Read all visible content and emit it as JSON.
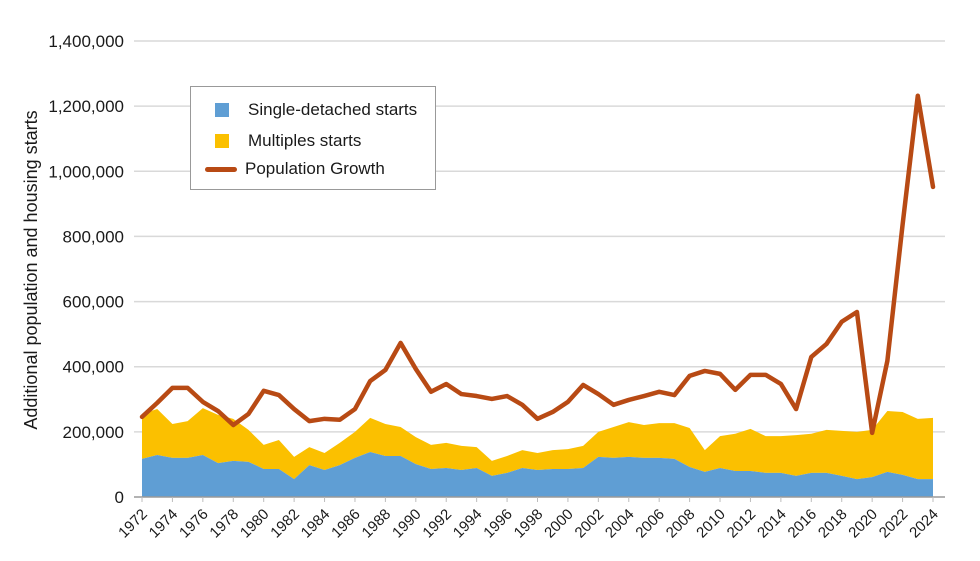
{
  "chart_data": {
    "type": "area",
    "title": "",
    "xlabel": "",
    "ylabel": "Additional population and housing starts",
    "ylim": [
      0,
      1400000
    ],
    "yticks": [
      0,
      200000,
      400000,
      600000,
      800000,
      1000000,
      1200000,
      1400000
    ],
    "ytick_labels": [
      "0",
      "200,000",
      "400,000",
      "600,000",
      "800,000",
      "1,000,000",
      "1,200,000",
      "1,400,000"
    ],
    "xtick_labels": [
      "1972",
      "1974",
      "1976",
      "1978",
      "1980",
      "1982",
      "1984",
      "1986",
      "1988",
      "1990",
      "1992",
      "1994",
      "1996",
      "1998",
      "2000",
      "2002",
      "2004",
      "2006",
      "2008",
      "2010",
      "2012",
      "2014",
      "2016",
      "2018",
      "2020",
      "2022",
      "2024"
    ],
    "grid": true,
    "legend_position": "top-left",
    "x": [
      1972,
      1973,
      1974,
      1975,
      1976,
      1977,
      1978,
      1979,
      1980,
      1981,
      1982,
      1983,
      1984,
      1985,
      1986,
      1987,
      1988,
      1989,
      1990,
      1991,
      1992,
      1993,
      1994,
      1995,
      1996,
      1997,
      1998,
      1999,
      2000,
      2001,
      2002,
      2003,
      2004,
      2005,
      2006,
      2007,
      2008,
      2009,
      2010,
      2011,
      2012,
      2013,
      2014,
      2015,
      2016,
      2017,
      2018,
      2019,
      2020,
      2021,
      2022,
      2023,
      2024
    ],
    "series": [
      {
        "name": "Single-detached starts",
        "kind": "stacked-area",
        "color": "#5f9ed4",
        "values": [
          117000,
          129000,
          120000,
          120000,
          129000,
          104000,
          111000,
          108000,
          86000,
          86000,
          55000,
          98000,
          83000,
          98000,
          120000,
          138000,
          126000,
          126000,
          101000,
          86000,
          89000,
          83000,
          89000,
          65000,
          74000,
          89000,
          83000,
          86000,
          86000,
          89000,
          123000,
          120000,
          123000,
          120000,
          120000,
          117000,
          92000,
          77000,
          89000,
          80000,
          80000,
          74000,
          74000,
          65000,
          74000,
          74000,
          65000,
          55000,
          61000,
          77000,
          68000,
          55000,
          55000
        ]
      },
      {
        "name": "Multiples starts",
        "kind": "stacked-area",
        "color": "#fbc000",
        "values": [
          138000,
          141000,
          104000,
          113000,
          144000,
          148000,
          129000,
          98000,
          74000,
          89000,
          68000,
          55000,
          52000,
          68000,
          80000,
          105000,
          98000,
          89000,
          83000,
          74000,
          77000,
          74000,
          64000,
          46000,
          52000,
          55000,
          52000,
          58000,
          61000,
          68000,
          77000,
          95000,
          107000,
          101000,
          107000,
          110000,
          120000,
          67000,
          98000,
          114000,
          129000,
          113000,
          113000,
          125000,
          120000,
          132000,
          138000,
          145000,
          145000,
          187000,
          193000,
          185000,
          188000
        ]
      },
      {
        "name": "Population Growth",
        "kind": "line",
        "color": "#b84a14",
        "values": [
          246000,
          289000,
          335000,
          335000,
          292000,
          264000,
          221000,
          255000,
          326000,
          313000,
          270000,
          233000,
          240000,
          237000,
          270000,
          356000,
          390000,
          473000,
          393000,
          323000,
          347000,
          316000,
          310000,
          301000,
          310000,
          283000,
          240000,
          261000,
          292000,
          344000,
          316000,
          283000,
          298000,
          310000,
          323000,
          313000,
          372000,
          387000,
          378000,
          329000,
          375000,
          375000,
          347000,
          270000,
          430000,
          470000,
          538000,
          568000,
          197000,
          418000,
          836000,
          1232000,
          952000
        ]
      }
    ]
  },
  "legend": {
    "items": [
      {
        "label": "Single-detached starts",
        "color": "#5f9ed4",
        "marker": "square"
      },
      {
        "label": "Multiples starts",
        "color": "#fbc000",
        "marker": "square"
      },
      {
        "label": "Population Growth",
        "color": "#b84a14",
        "marker": "line"
      }
    ]
  }
}
